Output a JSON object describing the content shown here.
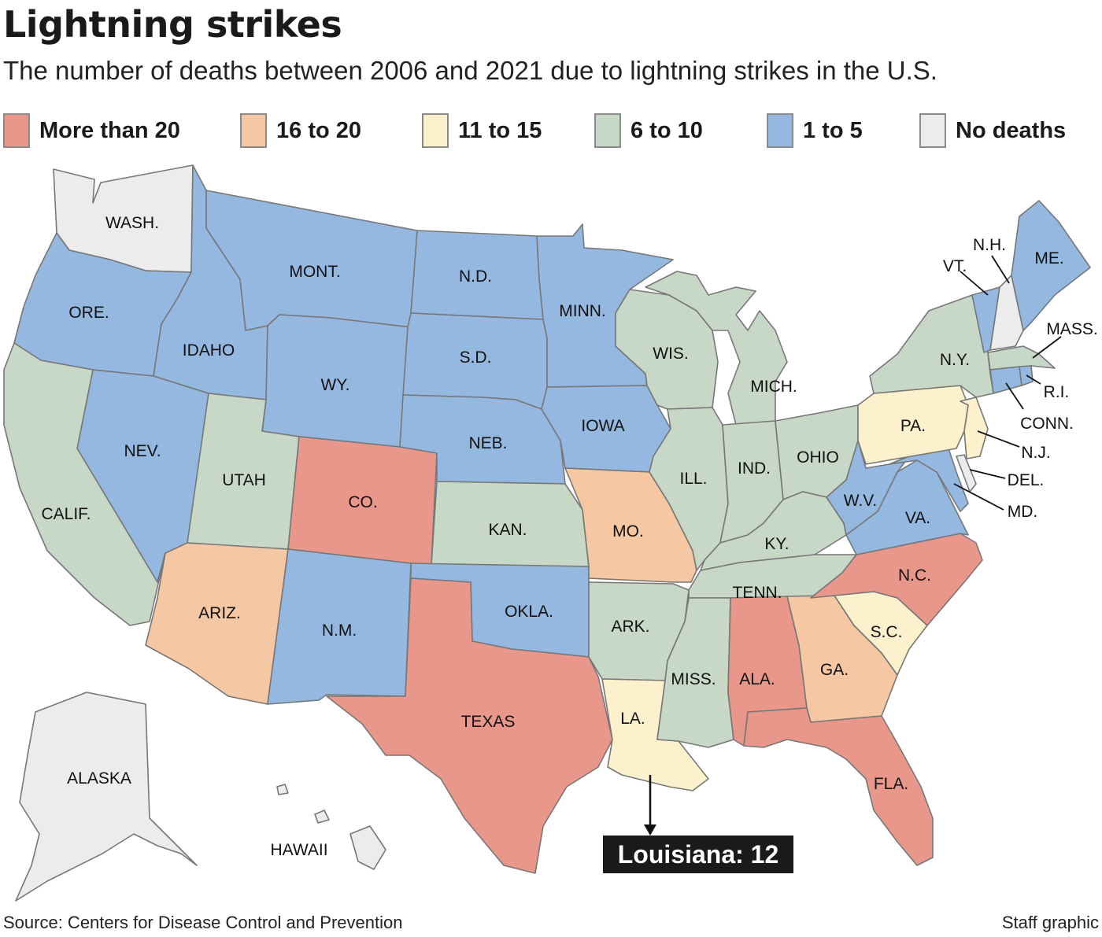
{
  "header": {
    "title": "Lightning strikes",
    "subtitle": "The number of deaths between 2006 and 2021 due to lightning strikes in the U.S."
  },
  "legend": [
    {
      "label": "More than 20",
      "color": "#e8978a"
    },
    {
      "label": "16 to 20",
      "color": "#f5c7a2"
    },
    {
      "label": "11 to 15",
      "color": "#fdf0cc"
    },
    {
      "label": "6 to 10",
      "color": "#c8d8c7"
    },
    {
      "label": "1 to 5",
      "color": "#94b8e0"
    },
    {
      "label": "No deaths",
      "color": "#ececec"
    }
  ],
  "states": [
    {
      "abbr": "WASH.",
      "category": "No deaths"
    },
    {
      "abbr": "ORE.",
      "category": "1 to 5"
    },
    {
      "abbr": "CALIF.",
      "category": "6 to 10"
    },
    {
      "abbr": "NEV.",
      "category": "1 to 5"
    },
    {
      "abbr": "IDAHO",
      "category": "1 to 5"
    },
    {
      "abbr": "MONT.",
      "category": "1 to 5"
    },
    {
      "abbr": "WY.",
      "category": "1 to 5"
    },
    {
      "abbr": "UTAH",
      "category": "6 to 10"
    },
    {
      "abbr": "ARIZ.",
      "category": "16 to 20"
    },
    {
      "abbr": "CO.",
      "category": "More than 20"
    },
    {
      "abbr": "N.M.",
      "category": "1 to 5"
    },
    {
      "abbr": "N.D.",
      "category": "1 to 5"
    },
    {
      "abbr": "S.D.",
      "category": "1 to 5"
    },
    {
      "abbr": "NEB.",
      "category": "1 to 5"
    },
    {
      "abbr": "KAN.",
      "category": "6 to 10"
    },
    {
      "abbr": "OKLA.",
      "category": "1 to 5"
    },
    {
      "abbr": "TEXAS",
      "category": "More than 20"
    },
    {
      "abbr": "MINN.",
      "category": "1 to 5"
    },
    {
      "abbr": "IOWA",
      "category": "1 to 5"
    },
    {
      "abbr": "MO.",
      "category": "16 to 20"
    },
    {
      "abbr": "ARK.",
      "category": "6 to 10"
    },
    {
      "abbr": "LA.",
      "category": "11 to 15"
    },
    {
      "abbr": "WIS.",
      "category": "6 to 10"
    },
    {
      "abbr": "ILL.",
      "category": "6 to 10"
    },
    {
      "abbr": "MICH.",
      "category": "6 to 10"
    },
    {
      "abbr": "IND.",
      "category": "6 to 10"
    },
    {
      "abbr": "OHIO",
      "category": "6 to 10"
    },
    {
      "abbr": "KY.",
      "category": "6 to 10"
    },
    {
      "abbr": "TENN.",
      "category": "6 to 10"
    },
    {
      "abbr": "MISS.",
      "category": "6 to 10"
    },
    {
      "abbr": "ALA.",
      "category": "More than 20"
    },
    {
      "abbr": "GA.",
      "category": "16 to 20"
    },
    {
      "abbr": "FLA.",
      "category": "More than 20"
    },
    {
      "abbr": "S.C.",
      "category": "11 to 15"
    },
    {
      "abbr": "N.C.",
      "category": "More than 20"
    },
    {
      "abbr": "VA.",
      "category": "1 to 5"
    },
    {
      "abbr": "W.V.",
      "category": "1 to 5"
    },
    {
      "abbr": "PA.",
      "category": "11 to 15"
    },
    {
      "abbr": "N.Y.",
      "category": "6 to 10"
    },
    {
      "abbr": "VT.",
      "category": "1 to 5"
    },
    {
      "abbr": "N.H.",
      "category": "No deaths"
    },
    {
      "abbr": "ME.",
      "category": "1 to 5"
    },
    {
      "abbr": "MASS.",
      "category": "6 to 10"
    },
    {
      "abbr": "R.I.",
      "category": "1 to 5"
    },
    {
      "abbr": "CONN.",
      "category": "1 to 5"
    },
    {
      "abbr": "N.J.",
      "category": "11 to 15"
    },
    {
      "abbr": "DEL.",
      "category": "No deaths"
    },
    {
      "abbr": "MD.",
      "category": "1 to 5"
    },
    {
      "abbr": "ALASKA",
      "category": "No deaths"
    },
    {
      "abbr": "HAWAII",
      "category": "No deaths"
    }
  ],
  "callout": {
    "label": "Louisiana: 12"
  },
  "footer": {
    "source": "Source: Centers for Disease Control and Prevention",
    "credit": "Staff graphic"
  }
}
